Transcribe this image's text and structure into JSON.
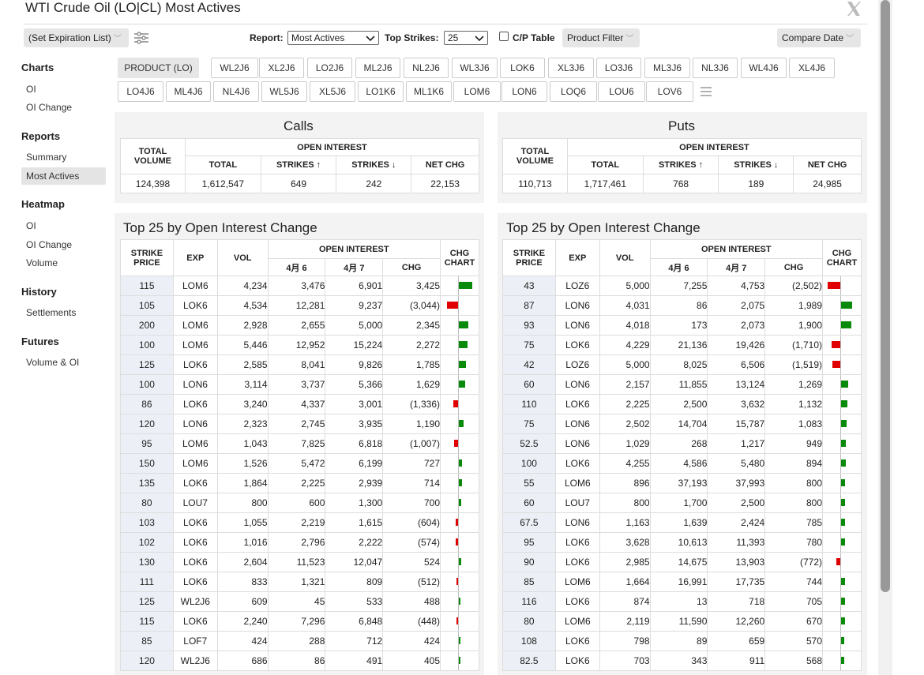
{
  "window": {
    "title": "WTI Crude Oil (LO|CL) Most Actives"
  },
  "toolbar": {
    "expiration": "(Set Expiration List)",
    "report_label": "Report:",
    "report_value": "Most Actives",
    "top_strikes_label": "Top Strikes:",
    "top_strikes_value": "25",
    "cp_table_label": "C/P Table",
    "product_filter": "Product Filter",
    "compare_date": "Compare Date"
  },
  "sidebar": {
    "sections": [
      {
        "heading": "Charts",
        "items": [
          "OI",
          "OI Change"
        ]
      },
      {
        "heading": "Reports",
        "items": [
          "Summary",
          "Most Actives"
        ]
      },
      {
        "heading": "Heatmap",
        "items": [
          "OI",
          "OI Change",
          "Volume"
        ]
      },
      {
        "heading": "History",
        "items": [
          "Settlements"
        ]
      },
      {
        "heading": "Futures",
        "items": [
          "Volume & OI"
        ]
      }
    ],
    "active": "Most Actives"
  },
  "products": {
    "row1": [
      "PRODUCT (LO)",
      "WL2J6",
      "XL2J6",
      "LO2J6",
      "ML2J6",
      "NL2J6",
      "WL3J6",
      "LOK6",
      "XL3J6",
      "LO3J6",
      "ML3J6",
      "NL3J6",
      "WL4J6",
      "XL4J6"
    ],
    "row2": [
      "LO4J6",
      "ML4J6",
      "NL4J6",
      "WL5J6",
      "XL5J6",
      "LO1K6",
      "ML1K6",
      "LOM6",
      "LON6",
      "LOQ6",
      "LOU6",
      "LOV6"
    ]
  },
  "headers": {
    "total_volume": "TOTAL VOLUME",
    "open_interest": "OPEN INTEREST",
    "total": "TOTAL",
    "strikes_up": "STRIKES ↑",
    "strikes_down": "STRIKES ↓",
    "net_chg": "NET CHG",
    "strike_price": "STRIKE PRICE",
    "exp": "EXP",
    "vol": "VOL",
    "d1": "4月 6",
    "d2": "4月 7",
    "chg": "CHG",
    "chg_chart": "CHG CHART"
  },
  "calls": {
    "title": "Calls",
    "summary": {
      "total_volume": "124,398",
      "total": "1,612,547",
      "strikes_up": "649",
      "strikes_down": "242",
      "net_chg": "22,153"
    },
    "top_title": "Top 25 by Open Interest Change",
    "rows": [
      [
        "115",
        "LOM6",
        "4,234",
        "3,476",
        "6,901",
        "3,425"
      ],
      [
        "105",
        "LOK6",
        "4,534",
        "12,281",
        "9,237",
        "(3,044)"
      ],
      [
        "200",
        "LOM6",
        "2,928",
        "2,655",
        "5,000",
        "2,345"
      ],
      [
        "100",
        "LOM6",
        "5,446",
        "12,952",
        "15,224",
        "2,272"
      ],
      [
        "125",
        "LOK6",
        "2,585",
        "8,041",
        "9,826",
        "1,785"
      ],
      [
        "100",
        "LON6",
        "3,114",
        "3,737",
        "5,366",
        "1,629"
      ],
      [
        "86",
        "LOK6",
        "3,240",
        "4,337",
        "3,001",
        "(1,336)"
      ],
      [
        "120",
        "LON6",
        "2,323",
        "2,745",
        "3,935",
        "1,190"
      ],
      [
        "95",
        "LOM6",
        "1,043",
        "7,825",
        "6,818",
        "(1,007)"
      ],
      [
        "150",
        "LOM6",
        "1,526",
        "5,472",
        "6,199",
        "727"
      ],
      [
        "135",
        "LOK6",
        "1,864",
        "2,225",
        "2,939",
        "714"
      ],
      [
        "80",
        "LOU7",
        "800",
        "600",
        "1,300",
        "700"
      ],
      [
        "103",
        "LOK6",
        "1,055",
        "2,219",
        "1,615",
        "(604)"
      ],
      [
        "102",
        "LOK6",
        "1,016",
        "2,796",
        "2,222",
        "(574)"
      ],
      [
        "130",
        "LOK6",
        "2,604",
        "11,523",
        "12,047",
        "524"
      ],
      [
        "111",
        "LOK6",
        "833",
        "1,321",
        "809",
        "(512)"
      ],
      [
        "125",
        "WL2J6",
        "609",
        "45",
        "533",
        "488"
      ],
      [
        "115",
        "LOK6",
        "2,240",
        "7,296",
        "6,848",
        "(448)"
      ],
      [
        "85",
        "LOF7",
        "424",
        "288",
        "712",
        "424"
      ],
      [
        "120",
        "WL2J6",
        "686",
        "86",
        "491",
        "405"
      ]
    ],
    "chg_values": [
      3425,
      -3044,
      2345,
      2272,
      1785,
      1629,
      -1336,
      1190,
      -1007,
      727,
      714,
      700,
      -604,
      -574,
      524,
      -512,
      488,
      -448,
      424,
      405
    ]
  },
  "puts": {
    "title": "Puts",
    "summary": {
      "total_volume": "110,713",
      "total": "1,717,461",
      "strikes_up": "768",
      "strikes_down": "189",
      "net_chg": "24,985"
    },
    "top_title": "Top 25 by Open Interest Change",
    "rows": [
      [
        "43",
        "LOZ6",
        "5,000",
        "7,255",
        "4,753",
        "(2,502)"
      ],
      [
        "87",
        "LON6",
        "4,031",
        "86",
        "2,075",
        "1,989"
      ],
      [
        "93",
        "LON6",
        "4,018",
        "173",
        "2,073",
        "1,900"
      ],
      [
        "75",
        "LOK6",
        "4,229",
        "21,136",
        "19,426",
        "(1,710)"
      ],
      [
        "42",
        "LOZ6",
        "5,000",
        "8,025",
        "6,506",
        "(1,519)"
      ],
      [
        "60",
        "LON6",
        "2,157",
        "11,855",
        "13,124",
        "1,269"
      ],
      [
        "110",
        "LOK6",
        "2,225",
        "2,500",
        "3,632",
        "1,132"
      ],
      [
        "75",
        "LON6",
        "2,502",
        "14,704",
        "15,787",
        "1,083"
      ],
      [
        "52.5",
        "LON6",
        "1,029",
        "268",
        "1,217",
        "949"
      ],
      [
        "100",
        "LOK6",
        "4,255",
        "4,586",
        "5,480",
        "894"
      ],
      [
        "55",
        "LOM6",
        "896",
        "37,193",
        "37,993",
        "800"
      ],
      [
        "60",
        "LOU7",
        "800",
        "1,700",
        "2,500",
        "800"
      ],
      [
        "67.5",
        "LON6",
        "1,163",
        "1,639",
        "2,424",
        "785"
      ],
      [
        "95",
        "LOK6",
        "3,628",
        "10,613",
        "11,393",
        "780"
      ],
      [
        "90",
        "LOK6",
        "2,985",
        "14,675",
        "13,903",
        "(772)"
      ],
      [
        "85",
        "LOM6",
        "1,664",
        "16,991",
        "17,735",
        "744"
      ],
      [
        "116",
        "LOK6",
        "874",
        "13",
        "718",
        "705"
      ],
      [
        "80",
        "LOM6",
        "2,119",
        "11,590",
        "12,260",
        "670"
      ],
      [
        "108",
        "LOK6",
        "798",
        "89",
        "659",
        "570"
      ],
      [
        "82.5",
        "LOK6",
        "703",
        "343",
        "911",
        "568"
      ]
    ],
    "chg_values": [
      -2502,
      1989,
      1900,
      -1710,
      -1519,
      1269,
      1132,
      1083,
      949,
      894,
      800,
      800,
      785,
      780,
      -772,
      744,
      705,
      670,
      570,
      568
    ]
  },
  "colors": {
    "positive": "#0a8a0a",
    "negative": "#e00000",
    "strike_bg": "#ecf0f6",
    "panel_bg": "#f3f3f3"
  }
}
